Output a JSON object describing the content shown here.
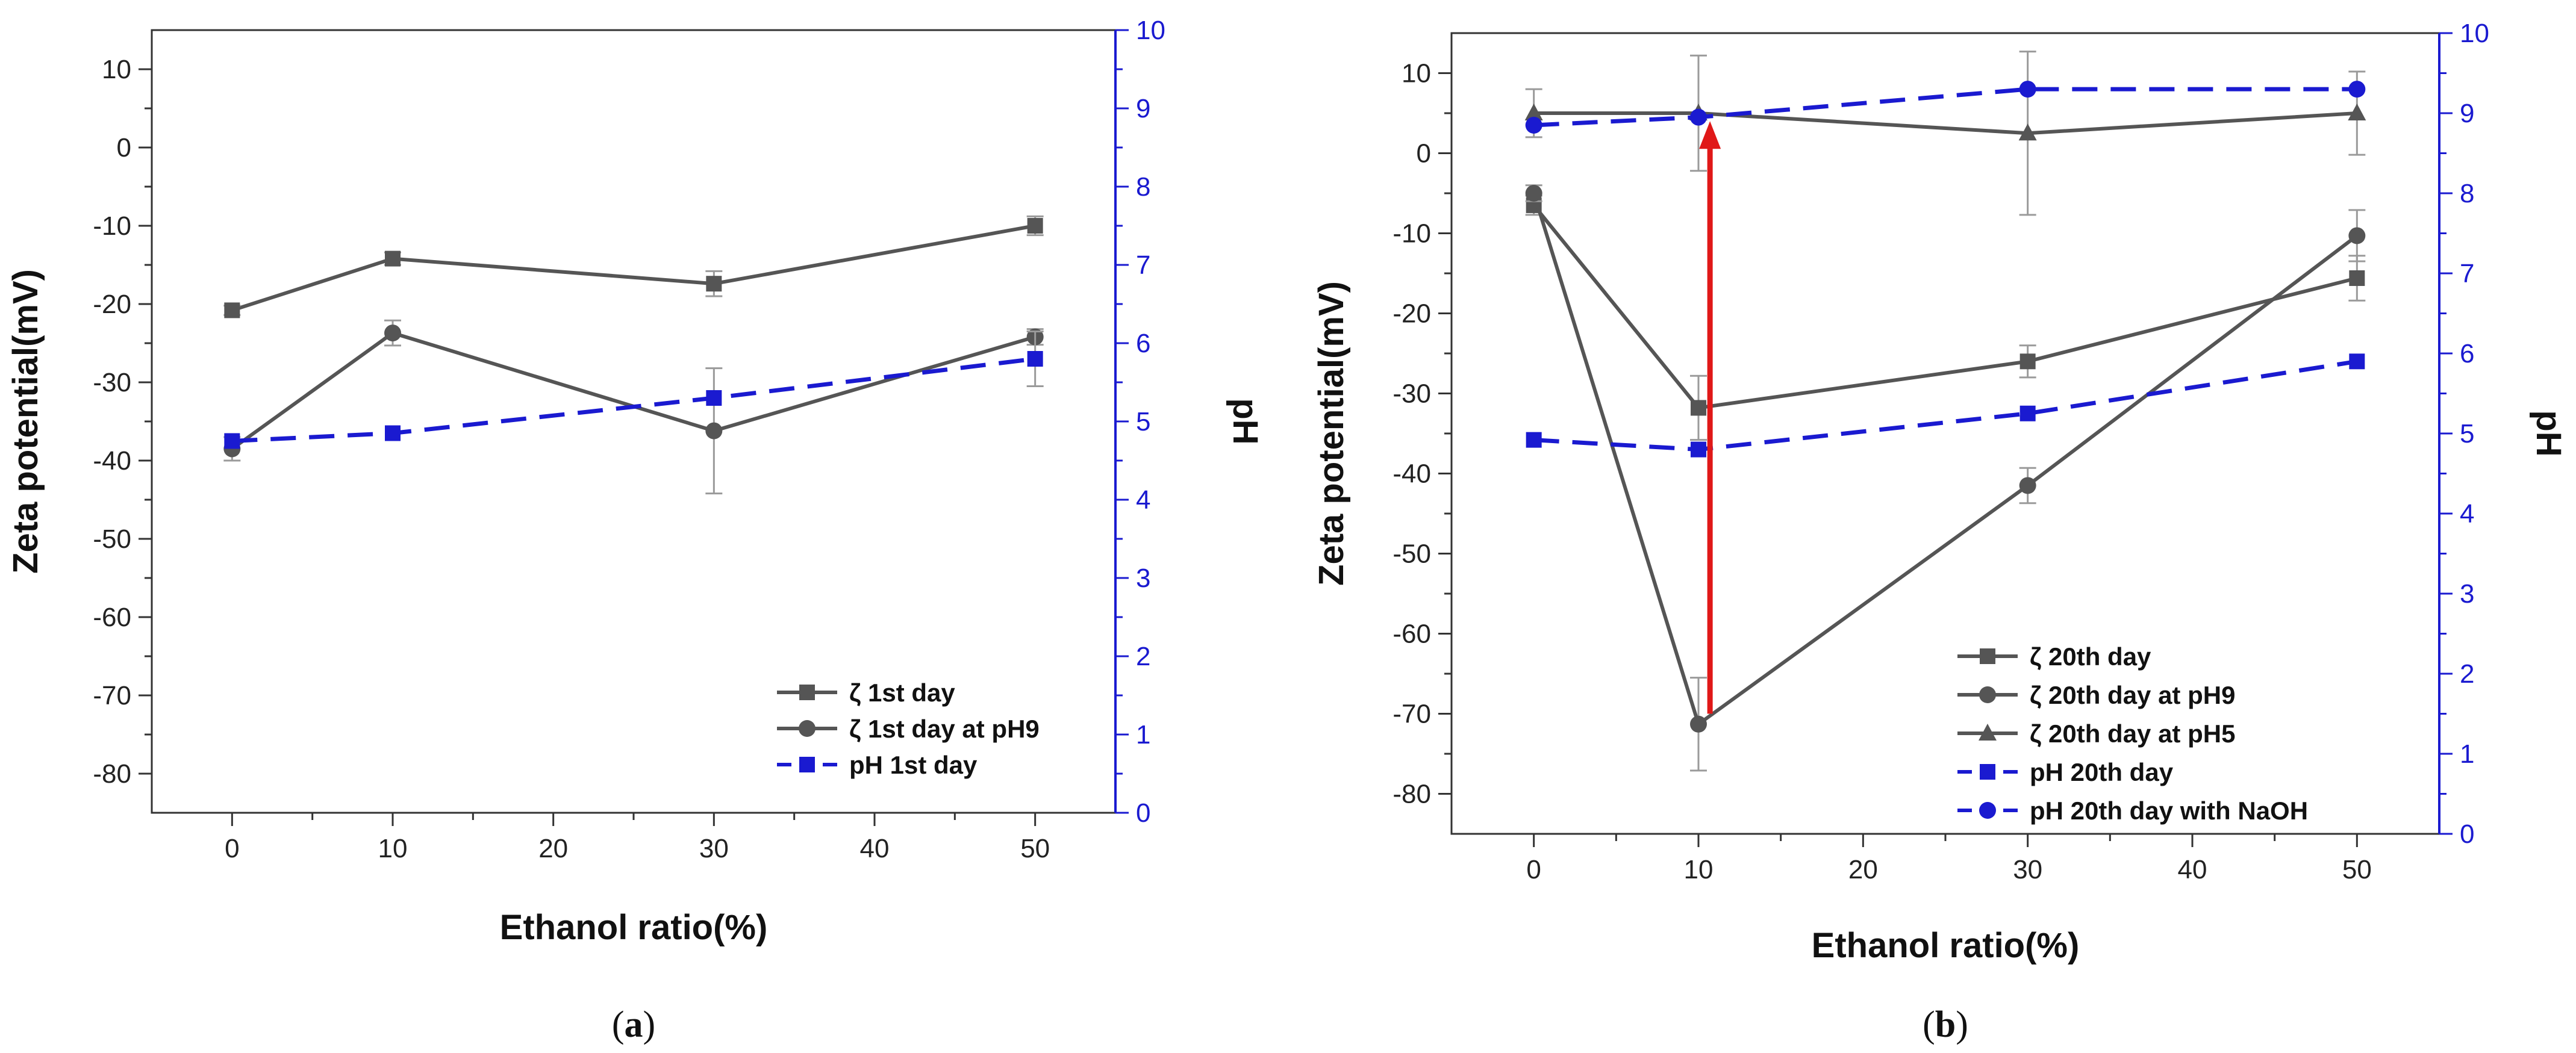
{
  "figure": {
    "colors": {
      "zeta": "#555555",
      "ph": "#1a1ad0",
      "arrow": "#e01818"
    }
  },
  "chart_data": [
    {
      "type": "line",
      "caption_open": "(",
      "caption_letter": "a",
      "caption_close": ")",
      "xlabel": "Ethanol ratio(%)",
      "ylabel": "Zeta potential(mV)",
      "ylabel_right": "pH",
      "xlim": [
        -5,
        55
      ],
      "ylim": [
        -85,
        15
      ],
      "ylim_right": [
        0,
        10
      ],
      "x_ticks": [
        0,
        10,
        20,
        30,
        40,
        50
      ],
      "y_ticks": [
        10,
        0,
        -10,
        -20,
        -30,
        -40,
        -50,
        -60,
        -70,
        -80
      ],
      "y_ticks_right": [
        10,
        9,
        8,
        7,
        6,
        5,
        4,
        3,
        2,
        1,
        0
      ],
      "legend_position": "bottom-right",
      "series": [
        {
          "name": "ζ 1st day",
          "axis": "left",
          "marker": "square",
          "style": "solid",
          "x": [
            0,
            10,
            30,
            50
          ],
          "y": [
            -20.8,
            -14.2,
            -17.4,
            -10.0
          ],
          "err": [
            0.6,
            0.8,
            1.6,
            1.2
          ]
        },
        {
          "name": "ζ 1st day at pH9",
          "axis": "left",
          "marker": "circle",
          "style": "solid",
          "x": [
            0,
            10,
            30,
            50
          ],
          "y": [
            -38.5,
            -23.7,
            -36.2,
            -24.2
          ],
          "err": [
            1.5,
            1.6,
            8.0,
            1.0
          ]
        },
        {
          "name": "pH 1st day",
          "axis": "right",
          "marker": "square",
          "style": "dashed",
          "x": [
            0,
            10,
            30,
            50
          ],
          "y": [
            4.75,
            4.85,
            5.3,
            5.8
          ],
          "err": [
            0,
            0,
            0,
            0.35
          ]
        }
      ]
    },
    {
      "type": "line",
      "caption_open": "(",
      "caption_letter": "b",
      "caption_close": ")",
      "xlabel": "Ethanol ratio(%)",
      "ylabel": "Zeta potential(mV)",
      "ylabel_right": "pH",
      "xlim": [
        -5,
        55
      ],
      "ylim": [
        -85,
        15
      ],
      "ylim_right": [
        0,
        10
      ],
      "x_ticks": [
        0,
        10,
        20,
        30,
        40,
        50
      ],
      "y_ticks": [
        10,
        0,
        -10,
        -20,
        -30,
        -40,
        -50,
        -60,
        -70,
        -80
      ],
      "y_ticks_right": [
        10,
        9,
        8,
        7,
        6,
        5,
        4,
        3,
        2,
        1,
        0
      ],
      "legend_position": "bottom-right",
      "annotation": "arrow from (10.7, -70) to (10.7, 4)",
      "arrow": {
        "x": 10.7,
        "y_from": -70,
        "y_to": 4
      },
      "series": [
        {
          "name": "ζ 20th day",
          "axis": "left",
          "marker": "square",
          "style": "solid",
          "x": [
            0,
            10,
            30,
            50
          ],
          "y": [
            -6.5,
            -31.8,
            -26.0,
            -15.6
          ],
          "err": [
            1.2,
            4.0,
            2.0,
            2.8
          ]
        },
        {
          "name": "ζ 20th day at pH9",
          "axis": "left",
          "marker": "circle",
          "style": "solid",
          "x": [
            0,
            10,
            30,
            50
          ],
          "y": [
            -5.0,
            -71.3,
            -41.5,
            -10.3
          ],
          "err": [
            1.0,
            5.8,
            2.2,
            3.2
          ]
        },
        {
          "name": "ζ 20th day at pH5",
          "axis": "left",
          "marker": "triangle",
          "style": "solid",
          "x": [
            0,
            10,
            30,
            50
          ],
          "y": [
            5.0,
            5.0,
            2.5,
            5.0
          ],
          "err": [
            3.0,
            7.2,
            10.2,
            5.2
          ]
        },
        {
          "name": "pH 20th day",
          "axis": "right",
          "marker": "square",
          "style": "dashed",
          "x": [
            0,
            10,
            30,
            50
          ],
          "y": [
            4.92,
            4.8,
            5.25,
            5.9
          ],
          "err": [
            0,
            0,
            0,
            0
          ]
        },
        {
          "name": "pH 20th day with NaOH",
          "axis": "right",
          "marker": "circle",
          "style": "dashed",
          "x": [
            0,
            10,
            30,
            50
          ],
          "y": [
            8.85,
            8.95,
            9.3,
            9.3
          ],
          "err": [
            0,
            0,
            0,
            0
          ]
        }
      ]
    }
  ]
}
